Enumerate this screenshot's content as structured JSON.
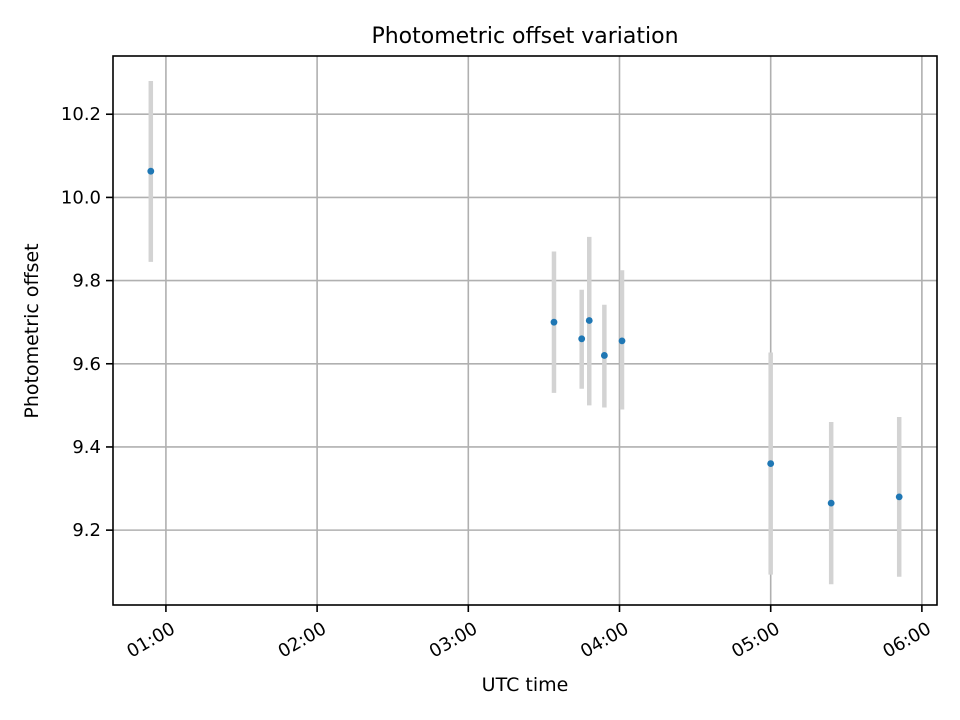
{
  "chart_data": {
    "type": "scatter",
    "title": "Photometric offset variation",
    "xlabel": "UTC time",
    "ylabel": "Photometric offset",
    "x_axis_kind": "time",
    "xlim": [
      "00:39",
      "06:06"
    ],
    "ylim": [
      9.02,
      10.34
    ],
    "x_ticks": [
      "01:00",
      "02:00",
      "03:00",
      "04:00",
      "05:00",
      "06:00"
    ],
    "y_ticks": [
      9.2,
      9.4,
      9.6,
      9.8,
      10.0,
      10.2
    ],
    "grid": true,
    "marker_color": "#1f77b4",
    "errorbar_color": "#d3d3d3",
    "points": [
      {
        "x": "00:54",
        "y": 10.063,
        "err_low": 9.845,
        "err_high": 10.28
      },
      {
        "x": "03:34",
        "y": 9.7,
        "err_low": 9.53,
        "err_high": 9.87
      },
      {
        "x": "03:45",
        "y": 9.66,
        "err_low": 9.54,
        "err_high": 9.778
      },
      {
        "x": "03:48",
        "y": 9.704,
        "err_low": 9.5,
        "err_high": 9.905
      },
      {
        "x": "03:54",
        "y": 9.62,
        "err_low": 9.495,
        "err_high": 9.742
      },
      {
        "x": "04:01",
        "y": 9.655,
        "err_low": 9.49,
        "err_high": 9.825
      },
      {
        "x": "05:00",
        "y": 9.36,
        "err_low": 9.093,
        "err_high": 9.627
      },
      {
        "x": "05:24",
        "y": 9.265,
        "err_low": 9.07,
        "err_high": 9.46
      },
      {
        "x": "05:51",
        "y": 9.28,
        "err_low": 9.088,
        "err_high": 9.472
      }
    ]
  }
}
